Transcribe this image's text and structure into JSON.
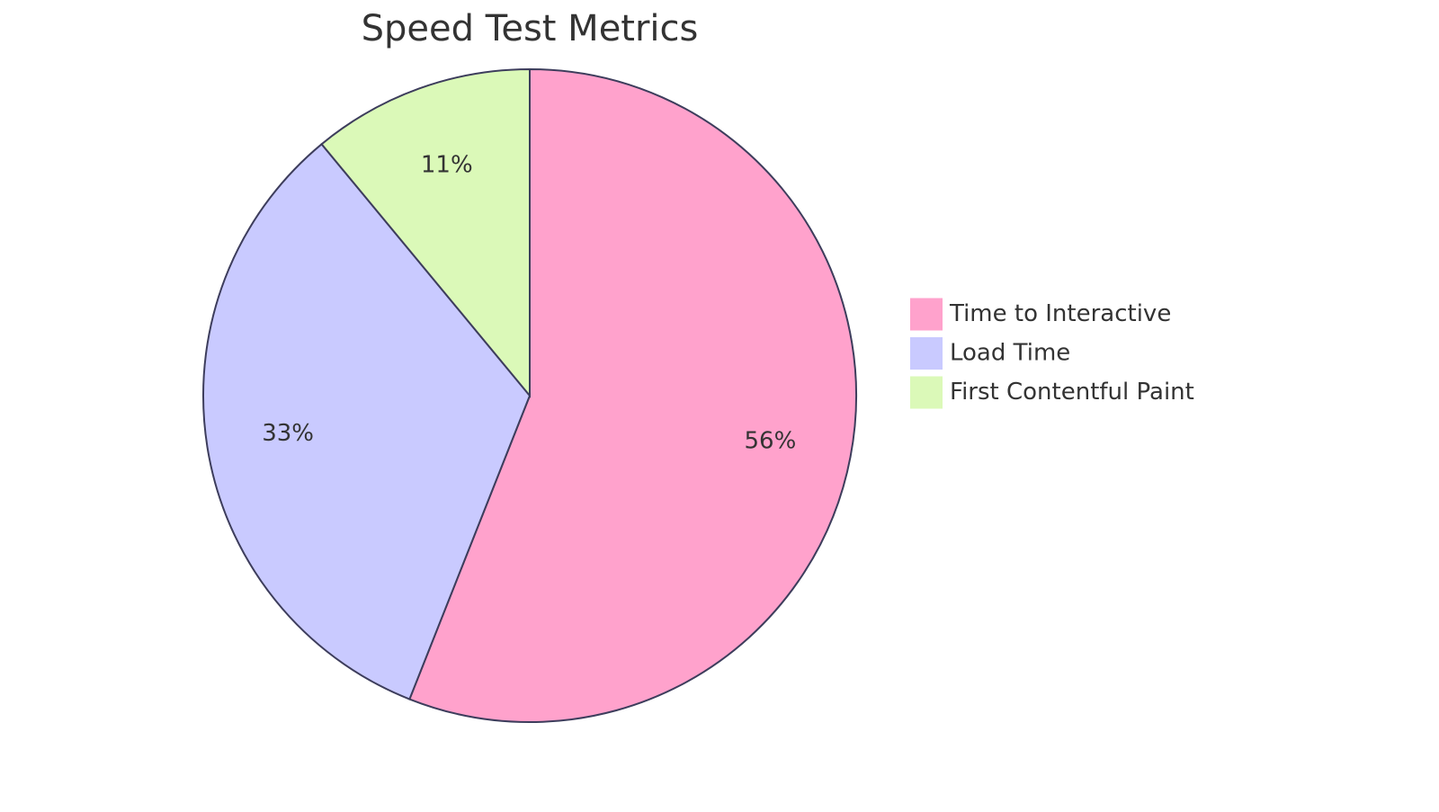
{
  "chart_data": {
    "type": "pie",
    "title": "Speed Test Metrics",
    "categories": [
      "Time to Interactive",
      "Load Time",
      "First Contentful Paint"
    ],
    "values": [
      56,
      33,
      11
    ],
    "value_labels": [
      "56%",
      "33%",
      "11%"
    ],
    "colors": [
      "#ffa2cc",
      "#c9caff",
      "#dbf9b8"
    ],
    "legend": "right"
  }
}
